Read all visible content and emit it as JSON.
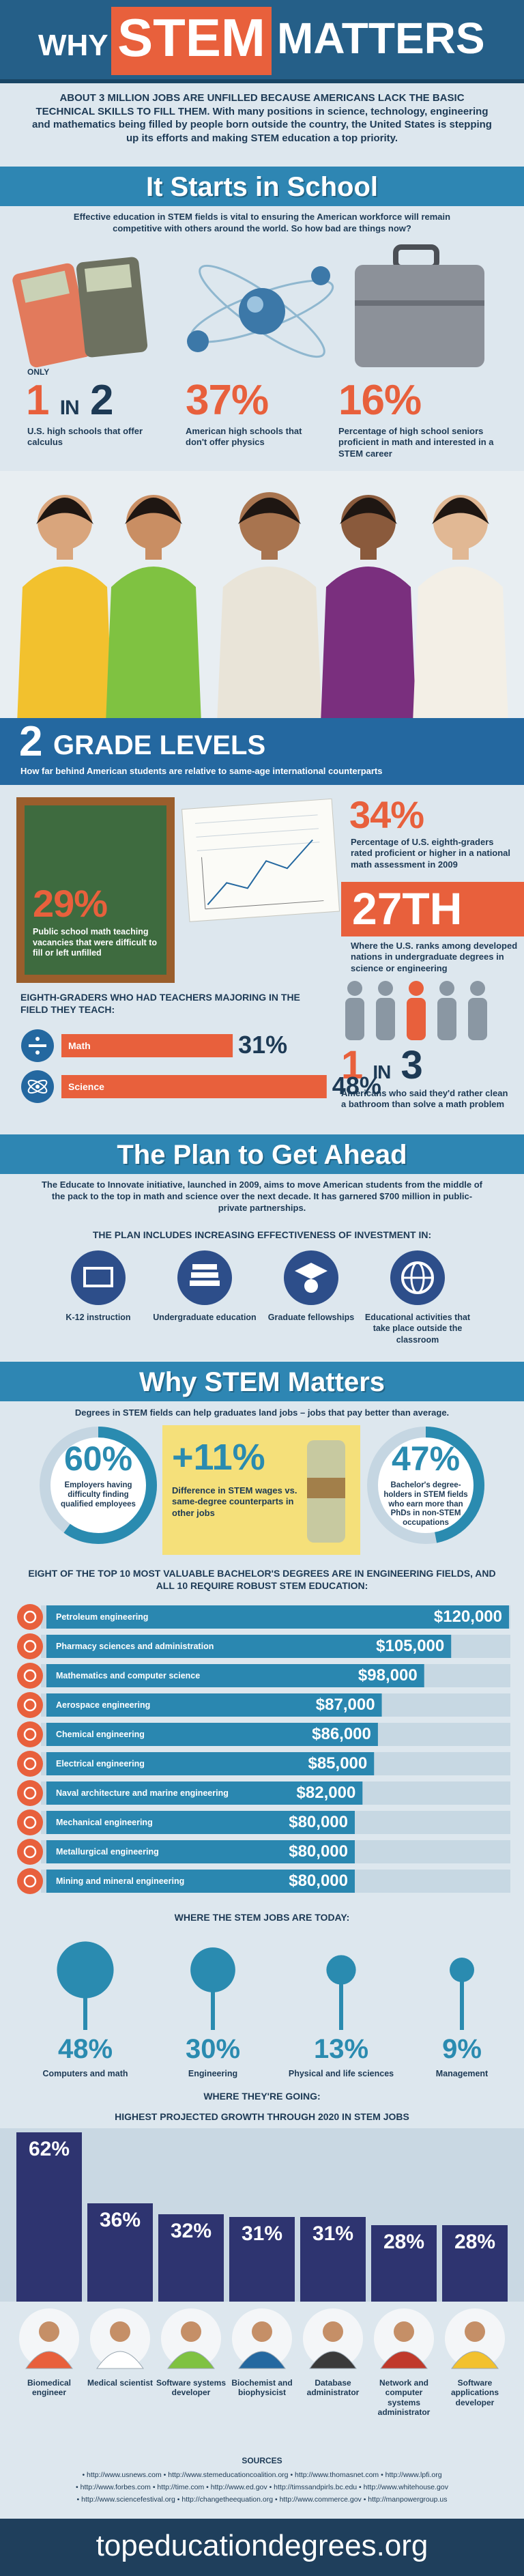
{
  "header": {
    "title": {
      "why": "WHY",
      "stem": "STEM",
      "matters": "MATTERS"
    },
    "intro_lead": "ABOUT 3 MILLION JOBS ARE UNFILLED BECAUSE AMERICANS LACK THE BASIC TECHNICAL SKILLS TO FILL THEM.",
    "intro_body": "With many positions in science, technology, engineering and mathematics being filled by people born outside the country, the United States is stepping up its efforts and making STEM education a top priority."
  },
  "school": {
    "title": "It Starts in School",
    "subtitle": "Effective education in STEM fields is vital to ensuring the American workforce will remain competitive with others around the world. So how bad are things now?",
    "calculus": {
      "prefix": "ONLY",
      "one": "1",
      "in": "IN",
      "two": "2",
      "caption": "U.S. high schools that offer calculus"
    },
    "physics": {
      "value": "37%",
      "caption": "American high schools that don't offer physics"
    },
    "seniors": {
      "value": "16%",
      "caption": "Percentage of high school seniors proficient in math and interested in a STEM career"
    },
    "grade_levels": {
      "number": "2",
      "label": "GRADE LEVELS",
      "caption": "How far behind American students are relative to same-age international counterparts"
    },
    "vacancies": {
      "value": "29%",
      "caption": "Public school math teaching vacancies that were difficult to fill or left unfilled"
    },
    "proficient": {
      "value": "34%",
      "caption": "Percentage of U.S. eighth-graders rated proficient or higher in a national math assessment in 2009"
    },
    "rank": {
      "value": "27TH",
      "caption": "Where the U.S. ranks among developed nations in undergraduate degrees in science or engineering"
    },
    "teachers_majoring": {
      "title": "EIGHTH-GRADERS WHO HAD TEACHERS MAJORING IN THE FIELD THEY TEACH:",
      "bars": [
        {
          "name": "Math",
          "value": 31,
          "label": "31%"
        },
        {
          "name": "Science",
          "value": 48,
          "label": "48%"
        }
      ]
    },
    "bathroom": {
      "one": "1",
      "in": "IN",
      "three": "3",
      "caption": "Americans who said they'd rather clean a bathroom than solve a math problem"
    }
  },
  "plan": {
    "title": "The Plan to Get Ahead",
    "text": "The Educate to Innovate initiative, launched in 2009, aims to move American students from the middle of the pack to the top in math and science over the next decade. It has garnered $700 million in public-private partnerships.",
    "heading": "THE PLAN INCLUDES INCREASING EFFECTIVENESS OF INVESTMENT IN:",
    "items": [
      "K-12 instruction",
      "Undergraduate education",
      "Graduate fellowships",
      "Educational activities that take place outside the classroom"
    ]
  },
  "why": {
    "title": "Why STEM Matters",
    "subtitle": "Degrees in STEM fields can help graduates land jobs – jobs that pay better than average.",
    "stats": [
      {
        "value": 60,
        "label": "60%",
        "caption": "Employers having difficulty finding qualified employees"
      },
      {
        "text": "+11%",
        "caption": "Difference in STEM wages vs. same-degree counterparts in other jobs"
      },
      {
        "value": 47,
        "label": "47%",
        "caption": "Bachelor's degree-holders in STEM fields who earn more than PhDs in non-STEM occupations"
      }
    ],
    "salaries": {
      "title": "EIGHT OF THE TOP 10 MOST VALUABLE BACHELOR'S DEGREES ARE IN ENGINEERING FIELDS, AND ALL 10 REQUIRE ROBUST STEM EDUCATION:",
      "rows": [
        {
          "name": "Petroleum engineering",
          "value": 120000,
          "label": "$120,000"
        },
        {
          "name": "Pharmacy sciences and administration",
          "value": 105000,
          "label": "$105,000"
        },
        {
          "name": "Mathematics and computer science",
          "value": 98000,
          "label": "$98,000"
        },
        {
          "name": "Aerospace engineering",
          "value": 87000,
          "label": "$87,000"
        },
        {
          "name": "Chemical engineering",
          "value": 86000,
          "label": "$86,000"
        },
        {
          "name": "Electrical engineering",
          "value": 85000,
          "label": "$85,000"
        },
        {
          "name": "Naval architecture and marine engineering",
          "value": 82000,
          "label": "$82,000"
        },
        {
          "name": "Mechanical engineering",
          "value": 80000,
          "label": "$80,000"
        },
        {
          "name": "Metallurgical engineering",
          "value": 80000,
          "label": "$80,000"
        },
        {
          "name": "Mining and mineral engineering",
          "value": 80000,
          "label": "$80,000"
        }
      ]
    },
    "jobs_today": {
      "title": "WHERE THE STEM JOBS ARE TODAY:",
      "items": [
        {
          "name": "Computers and math",
          "value": 48,
          "label": "48%"
        },
        {
          "name": "Engineering",
          "value": 30,
          "label": "30%"
        },
        {
          "name": "Physical and life sciences",
          "value": 13,
          "label": "13%"
        },
        {
          "name": "Management",
          "value": 9,
          "label": "9%"
        }
      ]
    },
    "growth": {
      "title": "WHERE THEY'RE GOING:",
      "subtitle": "HIGHEST PROJECTED GROWTH THROUGH 2020 IN STEM JOBS",
      "items": [
        {
          "name": "Biomedical engineer",
          "value": 62,
          "label": "62%"
        },
        {
          "name": "Medical scientist",
          "value": 36,
          "label": "36%"
        },
        {
          "name": "Software systems developer",
          "value": 32,
          "label": "32%"
        },
        {
          "name": "Biochemist and biophysicist",
          "value": 31,
          "label": "31%"
        },
        {
          "name": "Database administrator",
          "value": 31,
          "label": "31%"
        },
        {
          "name": "Network and computer systems administrator",
          "value": 28,
          "label": "28%"
        },
        {
          "name": "Software applications developer",
          "value": 28,
          "label": "28%"
        }
      ]
    }
  },
  "sources": {
    "title": "SOURCES",
    "lines": [
      "• http://www.usnews.com • http://www.stemeducationcoalition.org • http://www.thomasnet.com • http://www.lpfi.org",
      "• http://www.forbes.com • http://time.com • http://www.ed.gov • http://timssandpirls.bc.edu • http://www.whitehouse.gov",
      "• http://www.sciencefestival.org • http://changetheequation.org • http://www.commerce.gov • http://manpowergroup.us"
    ]
  },
  "footer": {
    "url": "topeducationdegrees.org"
  }
}
